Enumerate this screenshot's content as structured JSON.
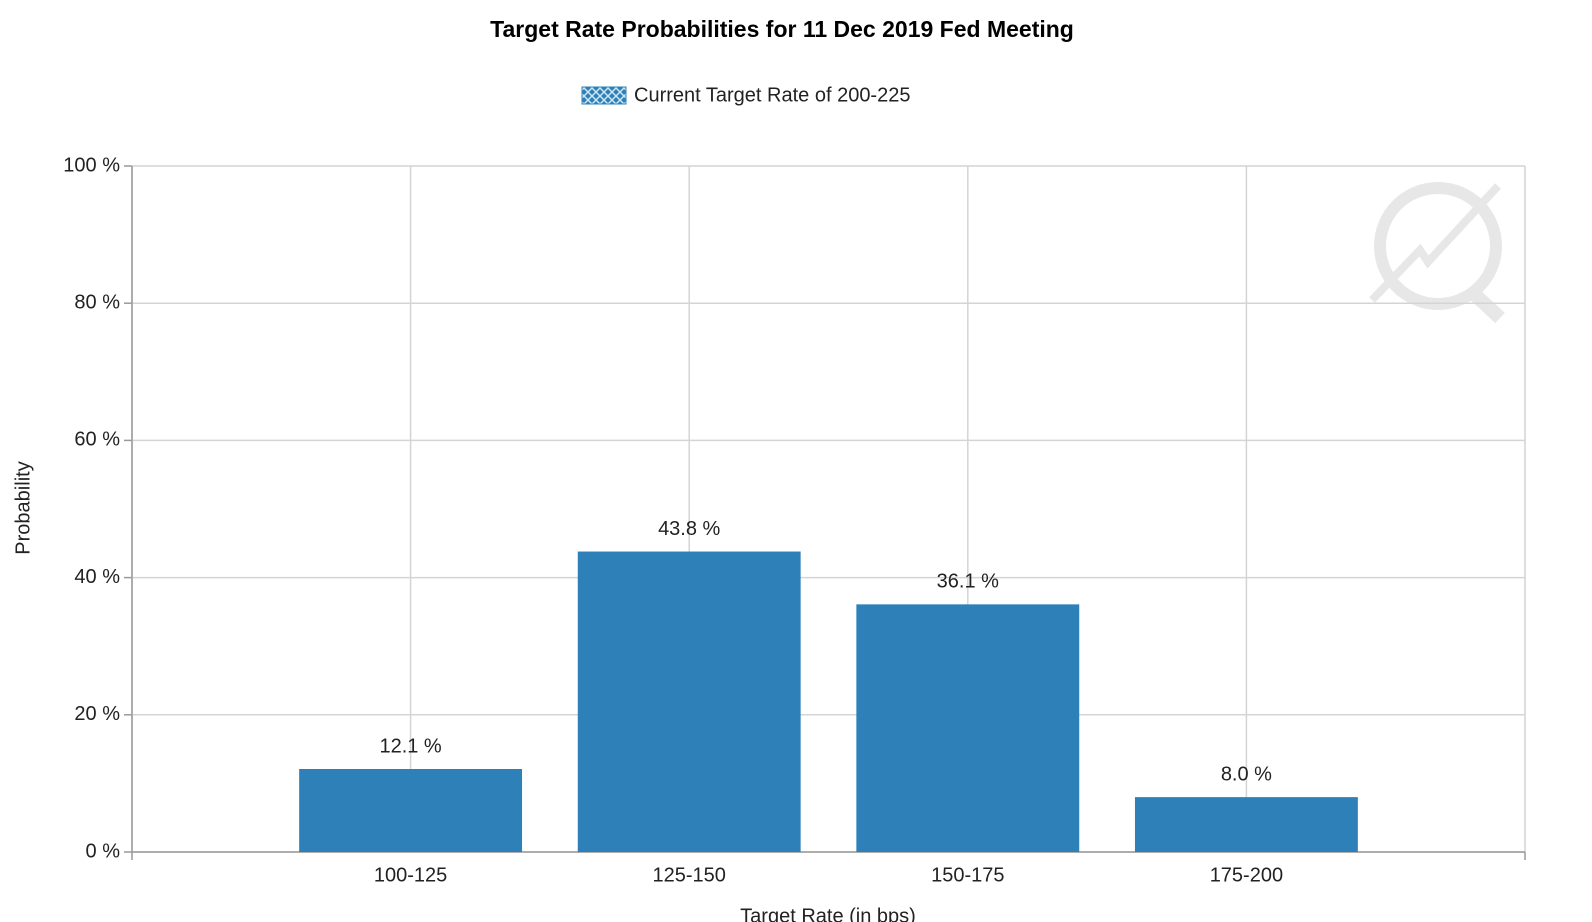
{
  "chart_data": {
    "type": "bar",
    "title": "Target Rate Probabilities for 11 Dec 2019 Fed Meeting",
    "x_label": "Target Rate (in bps)",
    "y_label": "Probability",
    "categories": [
      "100-125",
      "125-150",
      "150-175",
      "175-200"
    ],
    "series": [
      {
        "name": "Current Target Rate of 200-225",
        "color": "#2e81b8",
        "values": [
          12.1,
          43.8,
          36.1,
          8.0
        ],
        "value_labels": [
          "12.1 %",
          "43.8 %",
          "36.1 %",
          "8.0 %"
        ]
      }
    ],
    "ylim": [
      0,
      100
    ],
    "yticks": [
      {
        "value": 0,
        "label": "0 %"
      },
      {
        "value": 20,
        "label": "20 %"
      },
      {
        "value": 40,
        "label": "40 %"
      },
      {
        "value": 60,
        "label": "60 %"
      },
      {
        "value": 80,
        "label": "80 %"
      },
      {
        "value": 100,
        "label": "100 %"
      }
    ],
    "grid": true,
    "legend": "top"
  }
}
